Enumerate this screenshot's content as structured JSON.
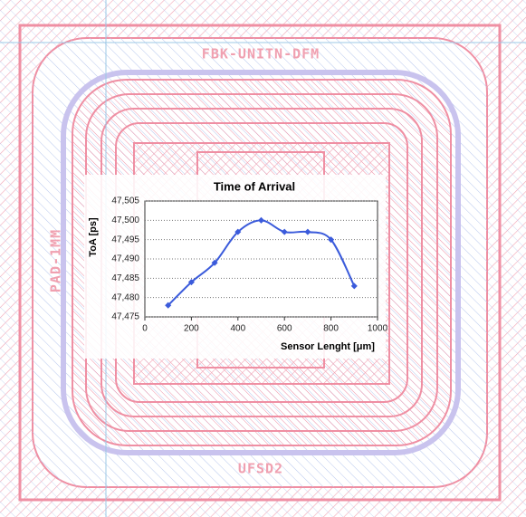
{
  "layout_labels": {
    "top": "FBK-UNITN-DFM",
    "left": "PAD-1MM",
    "bottom": "UFSD2"
  },
  "chart_data": {
    "type": "line",
    "title": "Time of Arrival",
    "x_label": "Sensor Lenght [μm]",
    "y_label": "ToA [ps]",
    "x": [
      100,
      200,
      300,
      400,
      500,
      600,
      700,
      800,
      900
    ],
    "series": [
      {
        "color": "#3b5bdb",
        "values": [
          47.478,
          47.484,
          47.489,
          47.497,
          47.5,
          47.497,
          47.497,
          47.495,
          47.483
        ]
      }
    ],
    "xlim": [
      0,
      1000
    ],
    "xticks": [
      0,
      200,
      400,
      600,
      800,
      1000
    ],
    "ylim": [
      47.475,
      47.505
    ],
    "yticks": [
      {
        "value": 47.475,
        "label": "47,475"
      },
      {
        "value": 47.48,
        "label": "47,480"
      },
      {
        "value": 47.485,
        "label": "47,485"
      },
      {
        "value": 47.49,
        "label": "47,490"
      },
      {
        "value": 47.495,
        "label": "47,495"
      },
      {
        "value": 47.5,
        "label": "47,500"
      },
      {
        "value": 47.505,
        "label": "47,505"
      }
    ],
    "grid": true
  }
}
